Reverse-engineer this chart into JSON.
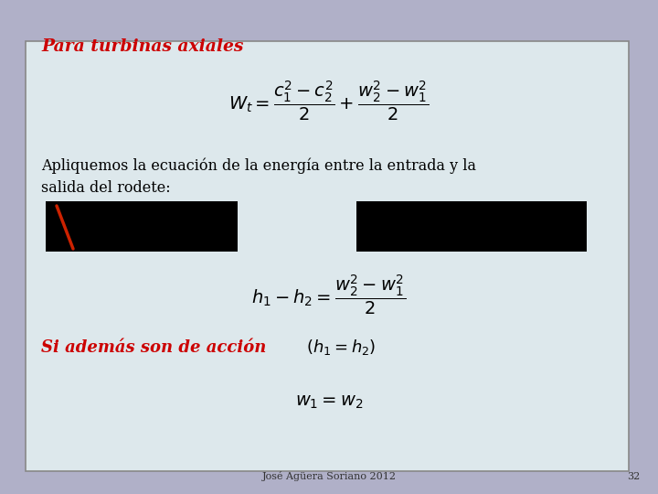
{
  "background_outer": "#b0b0c8",
  "background_inner": "#dde8ec",
  "title": "Para turbinas axiales",
  "title_color": "#cc0000",
  "formula1": "$W_t = \\dfrac{c_1^2 - c_2^2}{2} + \\dfrac{w_2^2 - w_1^2}{2}$",
  "text1": "Apliquemos la ecuación de la energía entre la entrada y la\nsalida del rodete:",
  "formula2": "$h_1 - h_2 = \\dfrac{w_2^2 - w_1^2}{2}$",
  "red_italic_text": "Si además son de acción",
  "math_inline": "$(h_1 = h_2)$",
  "formula3": "$w_1 = w_2$",
  "footer": "José Agüera Soriano 2012",
  "page_number": "32"
}
